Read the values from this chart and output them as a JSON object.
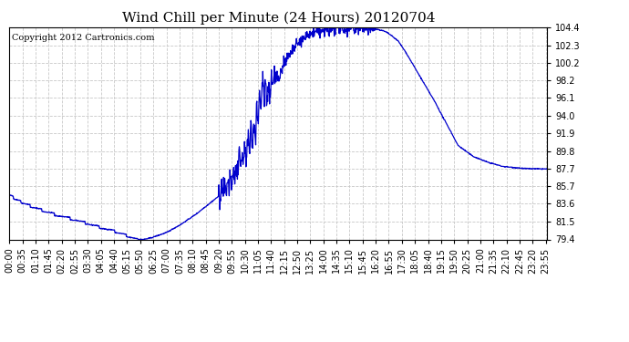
{
  "title": "Wind Chill per Minute (24 Hours) 20120704",
  "copyright_text": "Copyright 2012 Cartronics.com",
  "line_color": "#0000CC",
  "background_color": "#ffffff",
  "grid_color": "#c8c8c8",
  "y_min": 79.4,
  "y_max": 104.4,
  "y_ticks": [
    79.4,
    81.5,
    83.6,
    85.7,
    87.7,
    89.8,
    91.9,
    94.0,
    96.1,
    98.2,
    100.2,
    102.3,
    104.4
  ],
  "x_tick_labels": [
    "00:00",
    "00:35",
    "01:10",
    "01:45",
    "02:20",
    "02:55",
    "03:30",
    "04:05",
    "04:40",
    "05:15",
    "05:50",
    "06:25",
    "07:00",
    "07:35",
    "08:10",
    "08:45",
    "09:20",
    "09:55",
    "10:30",
    "11:05",
    "11:40",
    "12:15",
    "12:50",
    "13:25",
    "14:00",
    "14:35",
    "15:10",
    "15:45",
    "16:20",
    "16:55",
    "17:30",
    "18:05",
    "18:40",
    "19:15",
    "19:50",
    "20:25",
    "21:00",
    "21:35",
    "22:10",
    "22:45",
    "23:20",
    "23:55"
  ],
  "title_fontsize": 11,
  "copyright_fontsize": 7,
  "tick_fontsize": 7,
  "keypoints_t": [
    0,
    20,
    60,
    120,
    180,
    240,
    290,
    330,
    350,
    360,
    380,
    420,
    460,
    500,
    540,
    560,
    580,
    600,
    620,
    640,
    650,
    660,
    670,
    680,
    690,
    700,
    710,
    720,
    730,
    740,
    750,
    760,
    770,
    780,
    790,
    800,
    820,
    840,
    860,
    880,
    900,
    920,
    940,
    960,
    980,
    1000,
    1010,
    1020,
    1040,
    1060,
    1080,
    1100,
    1120,
    1140,
    1160,
    1180,
    1200,
    1240,
    1280,
    1320,
    1380,
    1435
  ],
  "keypoints_v": [
    84.8,
    84.2,
    83.4,
    82.5,
    81.8,
    81.0,
    80.4,
    79.7,
    79.4,
    79.4,
    79.6,
    80.2,
    81.2,
    82.4,
    83.8,
    84.5,
    85.5,
    86.8,
    88.5,
    90.5,
    91.8,
    93.2,
    95.5,
    97.8,
    96.5,
    97.5,
    99.0,
    98.2,
    99.5,
    100.5,
    101.2,
    101.8,
    102.3,
    102.8,
    103.2,
    103.5,
    103.8,
    104.0,
    104.2,
    104.3,
    104.4,
    104.4,
    104.35,
    104.3,
    104.2,
    104.0,
    103.8,
    103.5,
    102.8,
    101.5,
    100.0,
    98.5,
    97.0,
    95.5,
    93.8,
    92.2,
    90.5,
    89.2,
    88.5,
    88.0,
    87.75,
    87.7
  ],
  "noise_seed": 42
}
